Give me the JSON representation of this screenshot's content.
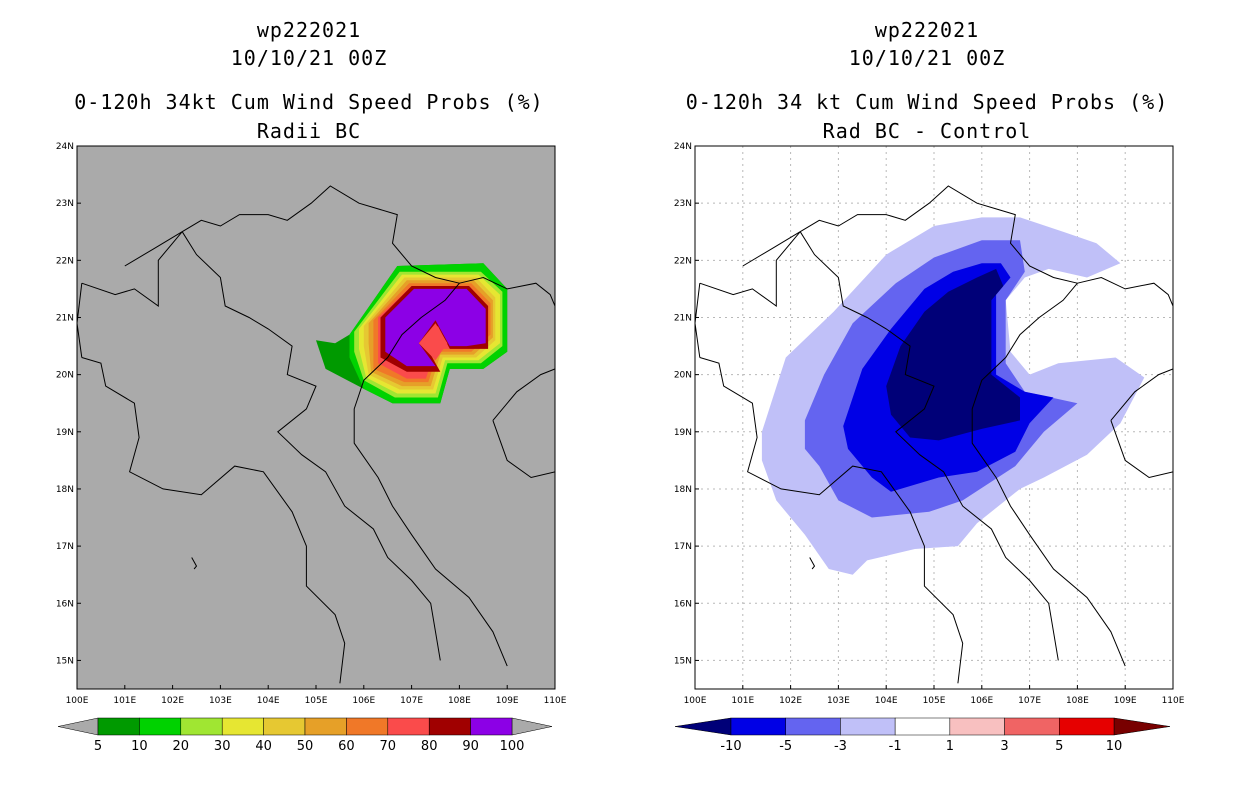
{
  "colors": {
    "land_gray": "#aaaaaa",
    "frame": "#000000",
    "grid": "#b8b8b8"
  },
  "left_panel": {
    "title_line1": "wp222021",
    "title_line2": "10/10/21 00Z",
    "title_line3": "0-120h 34kt Cum Wind Speed Probs (%)",
    "title_line4": "Radii BC"
  },
  "right_panel": {
    "title_line1": "wp222021",
    "title_line2": "10/10/21 00Z",
    "title_line3": "0-120h 34 kt Cum Wind Speed Probs (%)",
    "title_line4": "Rad BC - Control"
  },
  "chart_data": [
    {
      "type": "heatmap",
      "title": "0-120h 34kt Cum Wind Speed Probs (%) Radii BC",
      "lon_ticks": [
        "100E",
        "101E",
        "102E",
        "103E",
        "104E",
        "105E",
        "106E",
        "107E",
        "108E",
        "109E",
        "110E"
      ],
      "lat_ticks": [
        "24N",
        "23N",
        "22N",
        "21N",
        "20N",
        "19N",
        "18N",
        "17N",
        "16N",
        "15N"
      ],
      "xlim": [
        100,
        110
      ],
      "ylim": [
        14.5,
        24
      ],
      "grid": false,
      "legend_levels": [
        "5",
        "10",
        "20",
        "30",
        "40",
        "50",
        "60",
        "70",
        "80",
        "90",
        "100"
      ],
      "legend_colors": [
        "#009a00",
        "#00d200",
        "#a0e632",
        "#e6e632",
        "#e6c832",
        "#e6a028",
        "#f07828",
        "#fa4b4b",
        "#a00000",
        "#8c00e6"
      ],
      "contours": [
        {
          "level": 5,
          "color": "#009a00",
          "polygon": [
            [
              105.7,
              20.7
            ],
            [
              106.7,
              21.9
            ],
            [
              108.5,
              21.95
            ],
            [
              109.0,
              21.5
            ],
            [
              109.0,
              20.4
            ],
            [
              108.5,
              20.1
            ],
            [
              107.8,
              20.1
            ],
            [
              107.6,
              19.5
            ],
            [
              106.6,
              19.5
            ],
            [
              106.0,
              19.75
            ],
            [
              105.2,
              20.1
            ],
            [
              105.0,
              20.6
            ],
            [
              105.4,
              20.55
            ]
          ]
        },
        {
          "level": 10,
          "color": "#00d200",
          "polygon": [
            [
              105.7,
              20.7
            ],
            [
              106.7,
              21.9
            ],
            [
              108.5,
              21.95
            ],
            [
              109.0,
              21.5
            ],
            [
              109.0,
              20.4
            ],
            [
              108.5,
              20.1
            ],
            [
              107.8,
              20.1
            ],
            [
              107.6,
              19.5
            ],
            [
              106.6,
              19.5
            ],
            [
              106.0,
              19.75
            ],
            [
              105.7,
              20.3
            ]
          ]
        },
        {
          "level": 20,
          "color": "#a0e632",
          "polygon": [
            [
              105.8,
              20.75
            ],
            [
              106.75,
              21.8
            ],
            [
              108.45,
              21.8
            ],
            [
              108.9,
              21.45
            ],
            [
              108.9,
              20.5
            ],
            [
              108.45,
              20.2
            ],
            [
              107.75,
              20.2
            ],
            [
              107.55,
              19.6
            ],
            [
              106.65,
              19.6
            ],
            [
              106.0,
              19.9
            ],
            [
              105.8,
              20.4
            ]
          ]
        },
        {
          "level": 30,
          "color": "#e6e632",
          "polygon": [
            [
              105.9,
              20.8
            ],
            [
              106.8,
              21.75
            ],
            [
              108.4,
              21.75
            ],
            [
              108.85,
              21.4
            ],
            [
              108.85,
              20.55
            ],
            [
              108.4,
              20.25
            ],
            [
              107.7,
              20.25
            ],
            [
              107.5,
              19.67
            ],
            [
              106.7,
              19.67
            ],
            [
              106.05,
              19.95
            ],
            [
              105.9,
              20.45
            ]
          ]
        },
        {
          "level": 40,
          "color": "#e6c832",
          "polygon": [
            [
              106.0,
              20.85
            ],
            [
              106.85,
              21.7
            ],
            [
              108.35,
              21.7
            ],
            [
              108.75,
              21.35
            ],
            [
              108.75,
              20.6
            ],
            [
              108.35,
              20.3
            ],
            [
              107.65,
              20.3
            ],
            [
              107.45,
              19.74
            ],
            [
              106.75,
              19.74
            ],
            [
              106.1,
              20.0
            ],
            [
              106.0,
              20.5
            ]
          ]
        },
        {
          "level": 50,
          "color": "#e6a028",
          "polygon": [
            [
              106.1,
              20.9
            ],
            [
              106.9,
              21.65
            ],
            [
              108.3,
              21.65
            ],
            [
              108.7,
              21.3
            ],
            [
              108.7,
              20.65
            ],
            [
              108.3,
              20.35
            ],
            [
              107.6,
              20.35
            ],
            [
              107.4,
              19.8
            ],
            [
              106.8,
              19.8
            ],
            [
              106.15,
              20.05
            ],
            [
              106.1,
              20.55
            ]
          ]
        },
        {
          "level": 60,
          "color": "#f07828",
          "polygon": [
            [
              106.2,
              20.95
            ],
            [
              106.95,
              21.6
            ],
            [
              108.25,
              21.6
            ],
            [
              108.65,
              21.25
            ],
            [
              108.65,
              20.7
            ],
            [
              108.25,
              20.4
            ],
            [
              107.55,
              20.4
            ],
            [
              107.35,
              19.87
            ],
            [
              106.85,
              19.87
            ],
            [
              106.2,
              20.1
            ],
            [
              106.2,
              20.6
            ]
          ]
        },
        {
          "level": 70,
          "color": "#fa4b4b",
          "polygon": [
            [
              106.3,
              21.0
            ],
            [
              107.0,
              21.55
            ],
            [
              108.2,
              21.55
            ],
            [
              108.6,
              21.2
            ],
            [
              108.6,
              20.75
            ],
            [
              108.2,
              20.45
            ],
            [
              107.5,
              20.45
            ],
            [
              107.3,
              19.93
            ],
            [
              106.9,
              19.93
            ],
            [
              106.3,
              20.2
            ],
            [
              106.3,
              20.65
            ]
          ]
        },
        {
          "level": 80,
          "color": "#a00000",
          "polygon": [
            [
              106.35,
              21.0
            ],
            [
              107.0,
              21.55
            ],
            [
              108.2,
              21.55
            ],
            [
              108.6,
              21.2
            ],
            [
              108.6,
              20.45
            ],
            [
              108.2,
              20.45
            ],
            [
              107.8,
              20.45
            ],
            [
              107.55,
              20.85
            ],
            [
              107.3,
              20.5
            ],
            [
              107.6,
              20.05
            ],
            [
              106.9,
              20.05
            ],
            [
              106.35,
              20.3
            ]
          ]
        },
        {
          "level": 90,
          "color": "#8c00e6",
          "polygon": [
            [
              106.45,
              21.0
            ],
            [
              107.05,
              21.5
            ],
            [
              108.15,
              21.5
            ],
            [
              108.55,
              21.15
            ],
            [
              108.55,
              20.55
            ],
            [
              108.15,
              20.5
            ],
            [
              107.8,
              20.5
            ],
            [
              107.5,
              20.95
            ],
            [
              107.15,
              20.55
            ],
            [
              107.5,
              20.15
            ],
            [
              106.9,
              20.15
            ],
            [
              106.45,
              20.4
            ]
          ]
        },
        {
          "level": 80,
          "color": "#fa4b4b",
          "polygon": [
            [
              107.15,
              20.55
            ],
            [
              107.5,
              20.9
            ],
            [
              107.75,
              20.55
            ],
            [
              107.5,
              20.25
            ]
          ]
        }
      ]
    },
    {
      "type": "heatmap",
      "title": "0-120h 34 kt Cum Wind Speed Probs (%) Rad BC - Control",
      "lon_ticks": [
        "100E",
        "101E",
        "102E",
        "103E",
        "104E",
        "105E",
        "106E",
        "107E",
        "108E",
        "109E",
        "110E"
      ],
      "lat_ticks": [
        "24N",
        "23N",
        "22N",
        "21N",
        "20N",
        "19N",
        "18N",
        "17N",
        "16N",
        "15N"
      ],
      "xlim": [
        100,
        110
      ],
      "ylim": [
        14.5,
        24
      ],
      "grid": true,
      "legend_levels": [
        "-10",
        "-5",
        "-3",
        "-1",
        "1",
        "3",
        "5",
        "10"
      ],
      "legend_colors": [
        "#000078",
        "#0000e6",
        "#6464f0",
        "#c0c0f8",
        "#ffffff",
        "#f8c0c0",
        "#f06464",
        "#e60000",
        "#780000"
      ],
      "contours": [
        {
          "level": -1,
          "color": "#c0c0f8",
          "polygon": [
            [
              101.4,
              19.0
            ],
            [
              101.9,
              20.3
            ],
            [
              102.9,
              21.1
            ],
            [
              104.0,
              22.1
            ],
            [
              105.0,
              22.6
            ],
            [
              106.0,
              22.75
            ],
            [
              106.8,
              22.75
            ],
            [
              107.7,
              22.5
            ],
            [
              108.4,
              22.3
            ],
            [
              108.9,
              21.95
            ],
            [
              108.2,
              21.7
            ],
            [
              107.4,
              21.85
            ],
            [
              106.9,
              21.7
            ],
            [
              106.5,
              21.3
            ],
            [
              106.6,
              20.4
            ],
            [
              107.0,
              20.0
            ],
            [
              107.6,
              20.2
            ],
            [
              108.8,
              20.3
            ],
            [
              109.4,
              19.95
            ],
            [
              108.9,
              19.15
            ],
            [
              108.2,
              18.6
            ],
            [
              107.3,
              18.2
            ],
            [
              106.8,
              18.0
            ],
            [
              105.9,
              17.4
            ],
            [
              105.5,
              17.0
            ],
            [
              104.6,
              16.95
            ],
            [
              103.6,
              16.75
            ],
            [
              103.3,
              16.5
            ],
            [
              102.8,
              16.6
            ],
            [
              102.3,
              17.2
            ],
            [
              101.7,
              17.8
            ],
            [
              101.4,
              18.5
            ]
          ]
        },
        {
          "level": -3,
          "color": "#6464f0",
          "polygon": [
            [
              102.3,
              19.2
            ],
            [
              102.7,
              20.0
            ],
            [
              103.3,
              20.9
            ],
            [
              104.2,
              21.6
            ],
            [
              105.0,
              22.05
            ],
            [
              106.0,
              22.35
            ],
            [
              106.8,
              22.35
            ],
            [
              106.9,
              21.8
            ],
            [
              106.5,
              21.3
            ],
            [
              106.5,
              20.2
            ],
            [
              106.9,
              19.7
            ],
            [
              108.0,
              19.5
            ],
            [
              107.3,
              19.0
            ],
            [
              106.7,
              18.4
            ],
            [
              105.6,
              17.8
            ],
            [
              104.9,
              17.6
            ],
            [
              103.7,
              17.5
            ],
            [
              103.0,
              17.8
            ],
            [
              102.6,
              18.4
            ],
            [
              102.3,
              18.7
            ]
          ]
        },
        {
          "level": -5,
          "color": "#0000e6",
          "polygon": [
            [
              103.1,
              19.1
            ],
            [
              103.5,
              20.1
            ],
            [
              104.1,
              20.8
            ],
            [
              104.8,
              21.5
            ],
            [
              105.4,
              21.8
            ],
            [
              106.0,
              21.95
            ],
            [
              106.4,
              21.95
            ],
            [
              106.6,
              21.7
            ],
            [
              106.3,
              21.4
            ],
            [
              106.3,
              20.5
            ],
            [
              106.3,
              20.0
            ],
            [
              106.9,
              19.7
            ],
            [
              107.5,
              19.6
            ],
            [
              107.0,
              19.15
            ],
            [
              106.7,
              18.65
            ],
            [
              105.9,
              18.3
            ],
            [
              105.1,
              18.2
            ],
            [
              104.1,
              17.95
            ],
            [
              103.7,
              18.2
            ],
            [
              103.2,
              18.7
            ]
          ]
        },
        {
          "level": -10,
          "color": "#000078",
          "polygon": [
            [
              104.0,
              19.8
            ],
            [
              104.3,
              20.5
            ],
            [
              104.8,
              21.1
            ],
            [
              105.3,
              21.45
            ],
            [
              105.9,
              21.7
            ],
            [
              106.3,
              21.85
            ],
            [
              106.45,
              21.55
            ],
            [
              106.2,
              21.3
            ],
            [
              106.2,
              20.5
            ],
            [
              106.2,
              20.0
            ],
            [
              106.8,
              19.6
            ],
            [
              106.8,
              19.2
            ],
            [
              106.0,
              19.05
            ],
            [
              105.1,
              18.85
            ],
            [
              104.5,
              18.9
            ],
            [
              104.1,
              19.3
            ]
          ]
        }
      ]
    }
  ]
}
